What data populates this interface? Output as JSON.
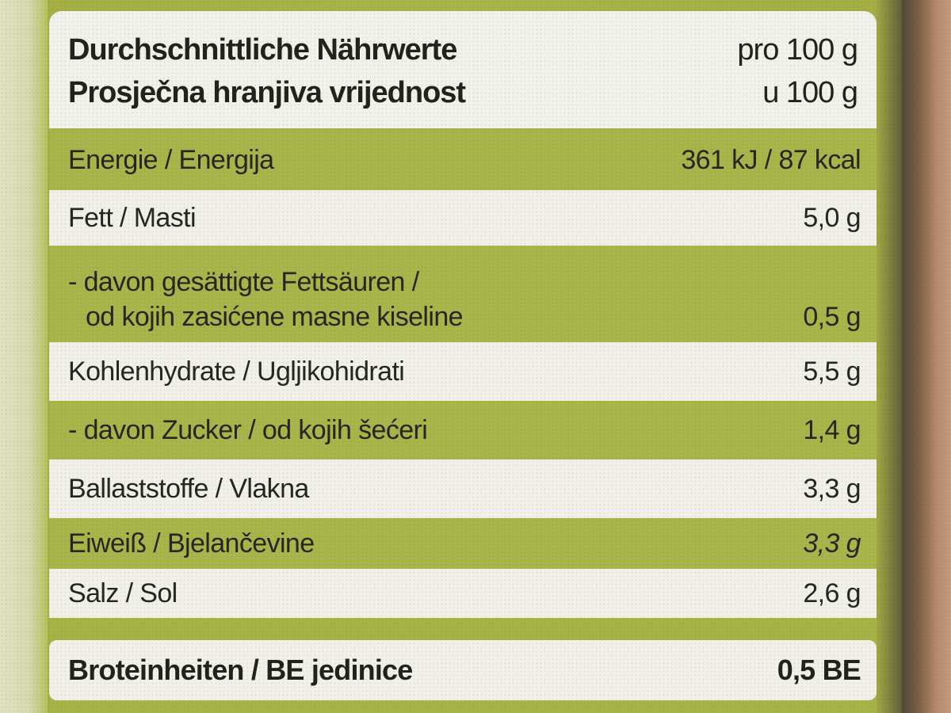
{
  "label": {
    "header": {
      "line1_label": "Durchschnittliche Nährwerte",
      "line1_value": "pro 100 g",
      "line2_label": "Prosječna hranjiva vrijednost",
      "line2_value": "u 100 g"
    },
    "rows": [
      {
        "name": "Energie / Energija",
        "value": "361 kJ / 87 kcal"
      },
      {
        "name": "Fett / Masti",
        "value": "5,0 g"
      },
      {
        "name_line1": "- davon gesättigte Fettsäuren  /",
        "name_line2": "  od kojih zasićene masne kiseline",
        "value": "0,5 g"
      },
      {
        "name": "Kohlenhydrate / Ugljikohidrati",
        "value": "5,5 g"
      },
      {
        "name": "- davon Zucker / od kojih šećeri",
        "value": "1,4 g"
      },
      {
        "name": "Ballaststoffe / Vlakna",
        "value": "3,3 g"
      },
      {
        "name": "Eiweiß / Bjelančevine",
        "value": "3,3 g"
      },
      {
        "name": "Salz / Sol",
        "value": "2,6 g"
      }
    ],
    "footer": {
      "name": "Broteinheiten / BE jedinice",
      "value": "0,5 BE"
    }
  },
  "colors": {
    "label_green": "#a8b54a",
    "row_white": "#f1f1ea",
    "text_dark": "#262620"
  }
}
